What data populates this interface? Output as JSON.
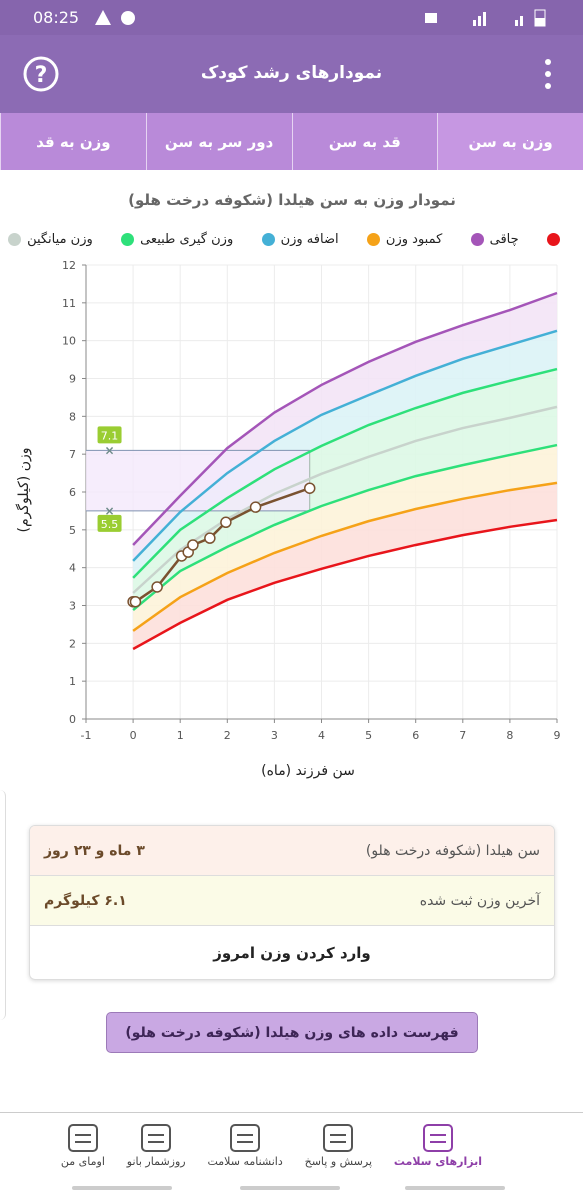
{
  "status_bar": {
    "time": "08:25"
  },
  "header": {
    "title": "نمودارهای رشد کودک"
  },
  "tabs": [
    "وزن به سن",
    "قد به سن",
    "دور سر به سن",
    "وزن به قد"
  ],
  "chart_data": {
    "type": "line",
    "title": "نمودار وزن به سن هیلدا (شکوفه درخت هلو)",
    "x_label": "سن فرزند (ماه)",
    "y_label": "وزن (کیلوگرم)",
    "xlim": [
      -1,
      9
    ],
    "ylim": [
      0,
      12
    ],
    "xticks": [
      -1,
      0,
      1,
      2,
      3,
      4,
      5,
      6,
      7,
      8,
      9
    ],
    "yticks": [
      0,
      1,
      2,
      3,
      4,
      5,
      6,
      7,
      8,
      9,
      10,
      11,
      12
    ],
    "grid": true,
    "x": [
      0,
      1,
      2,
      3,
      4,
      5,
      6,
      7,
      8,
      9
    ],
    "series": [
      {
        "color": "#e8151b",
        "fill": null,
        "values": [
          1.85,
          2.54,
          3.15,
          3.6,
          3.97,
          4.31,
          4.6,
          4.86,
          5.08,
          5.26
        ]
      },
      {
        "name": "چاقی",
        "color": "#a455b8",
        "fill": "#f3e4f6",
        "values": [
          4.6,
          5.9,
          7.16,
          8.1,
          8.83,
          9.44,
          9.97,
          10.41,
          10.81,
          11.26
        ]
      },
      {
        "name": "کمبود وزن",
        "color": "#f5a218",
        "fill": "#fde0dc",
        "values": [
          2.33,
          3.22,
          3.86,
          4.39,
          4.84,
          5.23,
          5.55,
          5.82,
          6.05,
          6.24
        ]
      },
      {
        "name": "اضافه وزن",
        "color": "#44b0d6",
        "fill": "#dcf3f6",
        "values": [
          4.18,
          5.47,
          6.5,
          7.35,
          8.04,
          8.56,
          9.07,
          9.52,
          9.89,
          10.26
        ]
      },
      {
        "name": "وزن گیری طبیعی",
        "color": "#2ee07a",
        "fill": "#ddf8e6",
        "values": [
          3.73,
          5.0,
          5.84,
          6.6,
          7.22,
          7.77,
          8.22,
          8.62,
          8.94,
          9.25
        ]
      },
      {
        "name": "وزن میانگین",
        "color": "#c8d3cc",
        "fill": "#ddf8e6",
        "values": [
          3.33,
          4.47,
          5.29,
          5.95,
          6.48,
          6.93,
          7.35,
          7.69,
          7.96,
          8.25
        ]
      },
      {
        "color": "#2ee07a",
        "fill": "#fdf3d9",
        "in_legend": false,
        "values": [
          2.88,
          3.91,
          4.55,
          5.13,
          5.63,
          6.05,
          6.42,
          6.71,
          6.98,
          7.24
        ]
      }
    ],
    "measurements": {
      "color": "#7a5230",
      "x": [
        0,
        0.05,
        0.51,
        1.03,
        1.17,
        1.27,
        1.63,
        1.97,
        2.6,
        3.75
      ],
      "values": [
        3.1,
        3.1,
        3.49,
        4.31,
        4.41,
        4.6,
        4.78,
        5.2,
        5.6,
        6.1
      ]
    },
    "range": {
      "x": -0.5,
      "low": 5.5,
      "high": 7.1,
      "color": "#9acd32"
    }
  },
  "info": {
    "rows": [
      [
        "سن هیلدا (شکوفه درخت هلو)",
        "۳ ماه و ۲۳ روز"
      ],
      [
        "آخرین وزن ثبت شده",
        "۶.۱ کیلوگرم"
      ]
    ],
    "button": "وارد کردن وزن امروز"
  },
  "list_button": "فهرست داده های وزن هیلدا (شکوفه درخت هلو)",
  "nav": [
    "ابزارهای سلامت",
    "پرسش و پاسخ",
    "دانشنامه سلامت",
    "روزشمار بانو",
    "اومای من"
  ]
}
